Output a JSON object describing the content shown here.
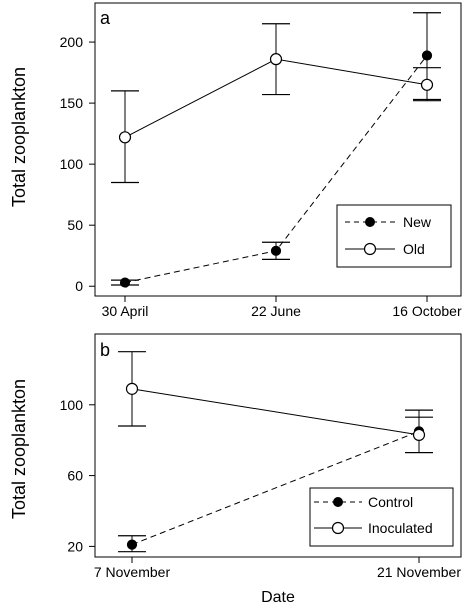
{
  "chart_data": [
    {
      "type": "line",
      "panel_label": "a",
      "ylabel": "Total zooplankton",
      "xlabel": "",
      "categories": [
        "30 April",
        "22 June",
        "16 October"
      ],
      "ylim": [
        -8,
        232
      ],
      "yticks": [
        0,
        50,
        100,
        150,
        200
      ],
      "grid": false,
      "legend_position": "lower-right",
      "series": [
        {
          "name": "New",
          "line_style": "dashed",
          "marker": "filled-circle",
          "values": [
            3,
            29,
            189
          ],
          "error_low": [
            1,
            22,
            152
          ],
          "error_high": [
            5,
            36,
            224
          ]
        },
        {
          "name": "Old",
          "line_style": "solid",
          "marker": "open-circle",
          "values": [
            122,
            186,
            165
          ],
          "error_low": [
            85,
            157,
            153
          ],
          "error_high": [
            160,
            215,
            179
          ]
        }
      ]
    },
    {
      "type": "line",
      "panel_label": "b",
      "ylabel": "Total zooplankton",
      "xlabel": "Date",
      "categories": [
        "7 November",
        "21 November"
      ],
      "ylim": [
        14,
        140
      ],
      "yticks": [
        20,
        60,
        100
      ],
      "grid": false,
      "legend_position": "lower-right",
      "series": [
        {
          "name": "Control",
          "line_style": "dashed",
          "marker": "filled-circle",
          "values": [
            21,
            85
          ],
          "error_low": [
            17,
            73
          ],
          "error_high": [
            26,
            97
          ]
        },
        {
          "name": "Inoculated",
          "line_style": "solid",
          "marker": "open-circle",
          "values": [
            109,
            83
          ],
          "error_low": [
            88,
            73
          ],
          "error_high": [
            130,
            93
          ]
        }
      ]
    }
  ]
}
